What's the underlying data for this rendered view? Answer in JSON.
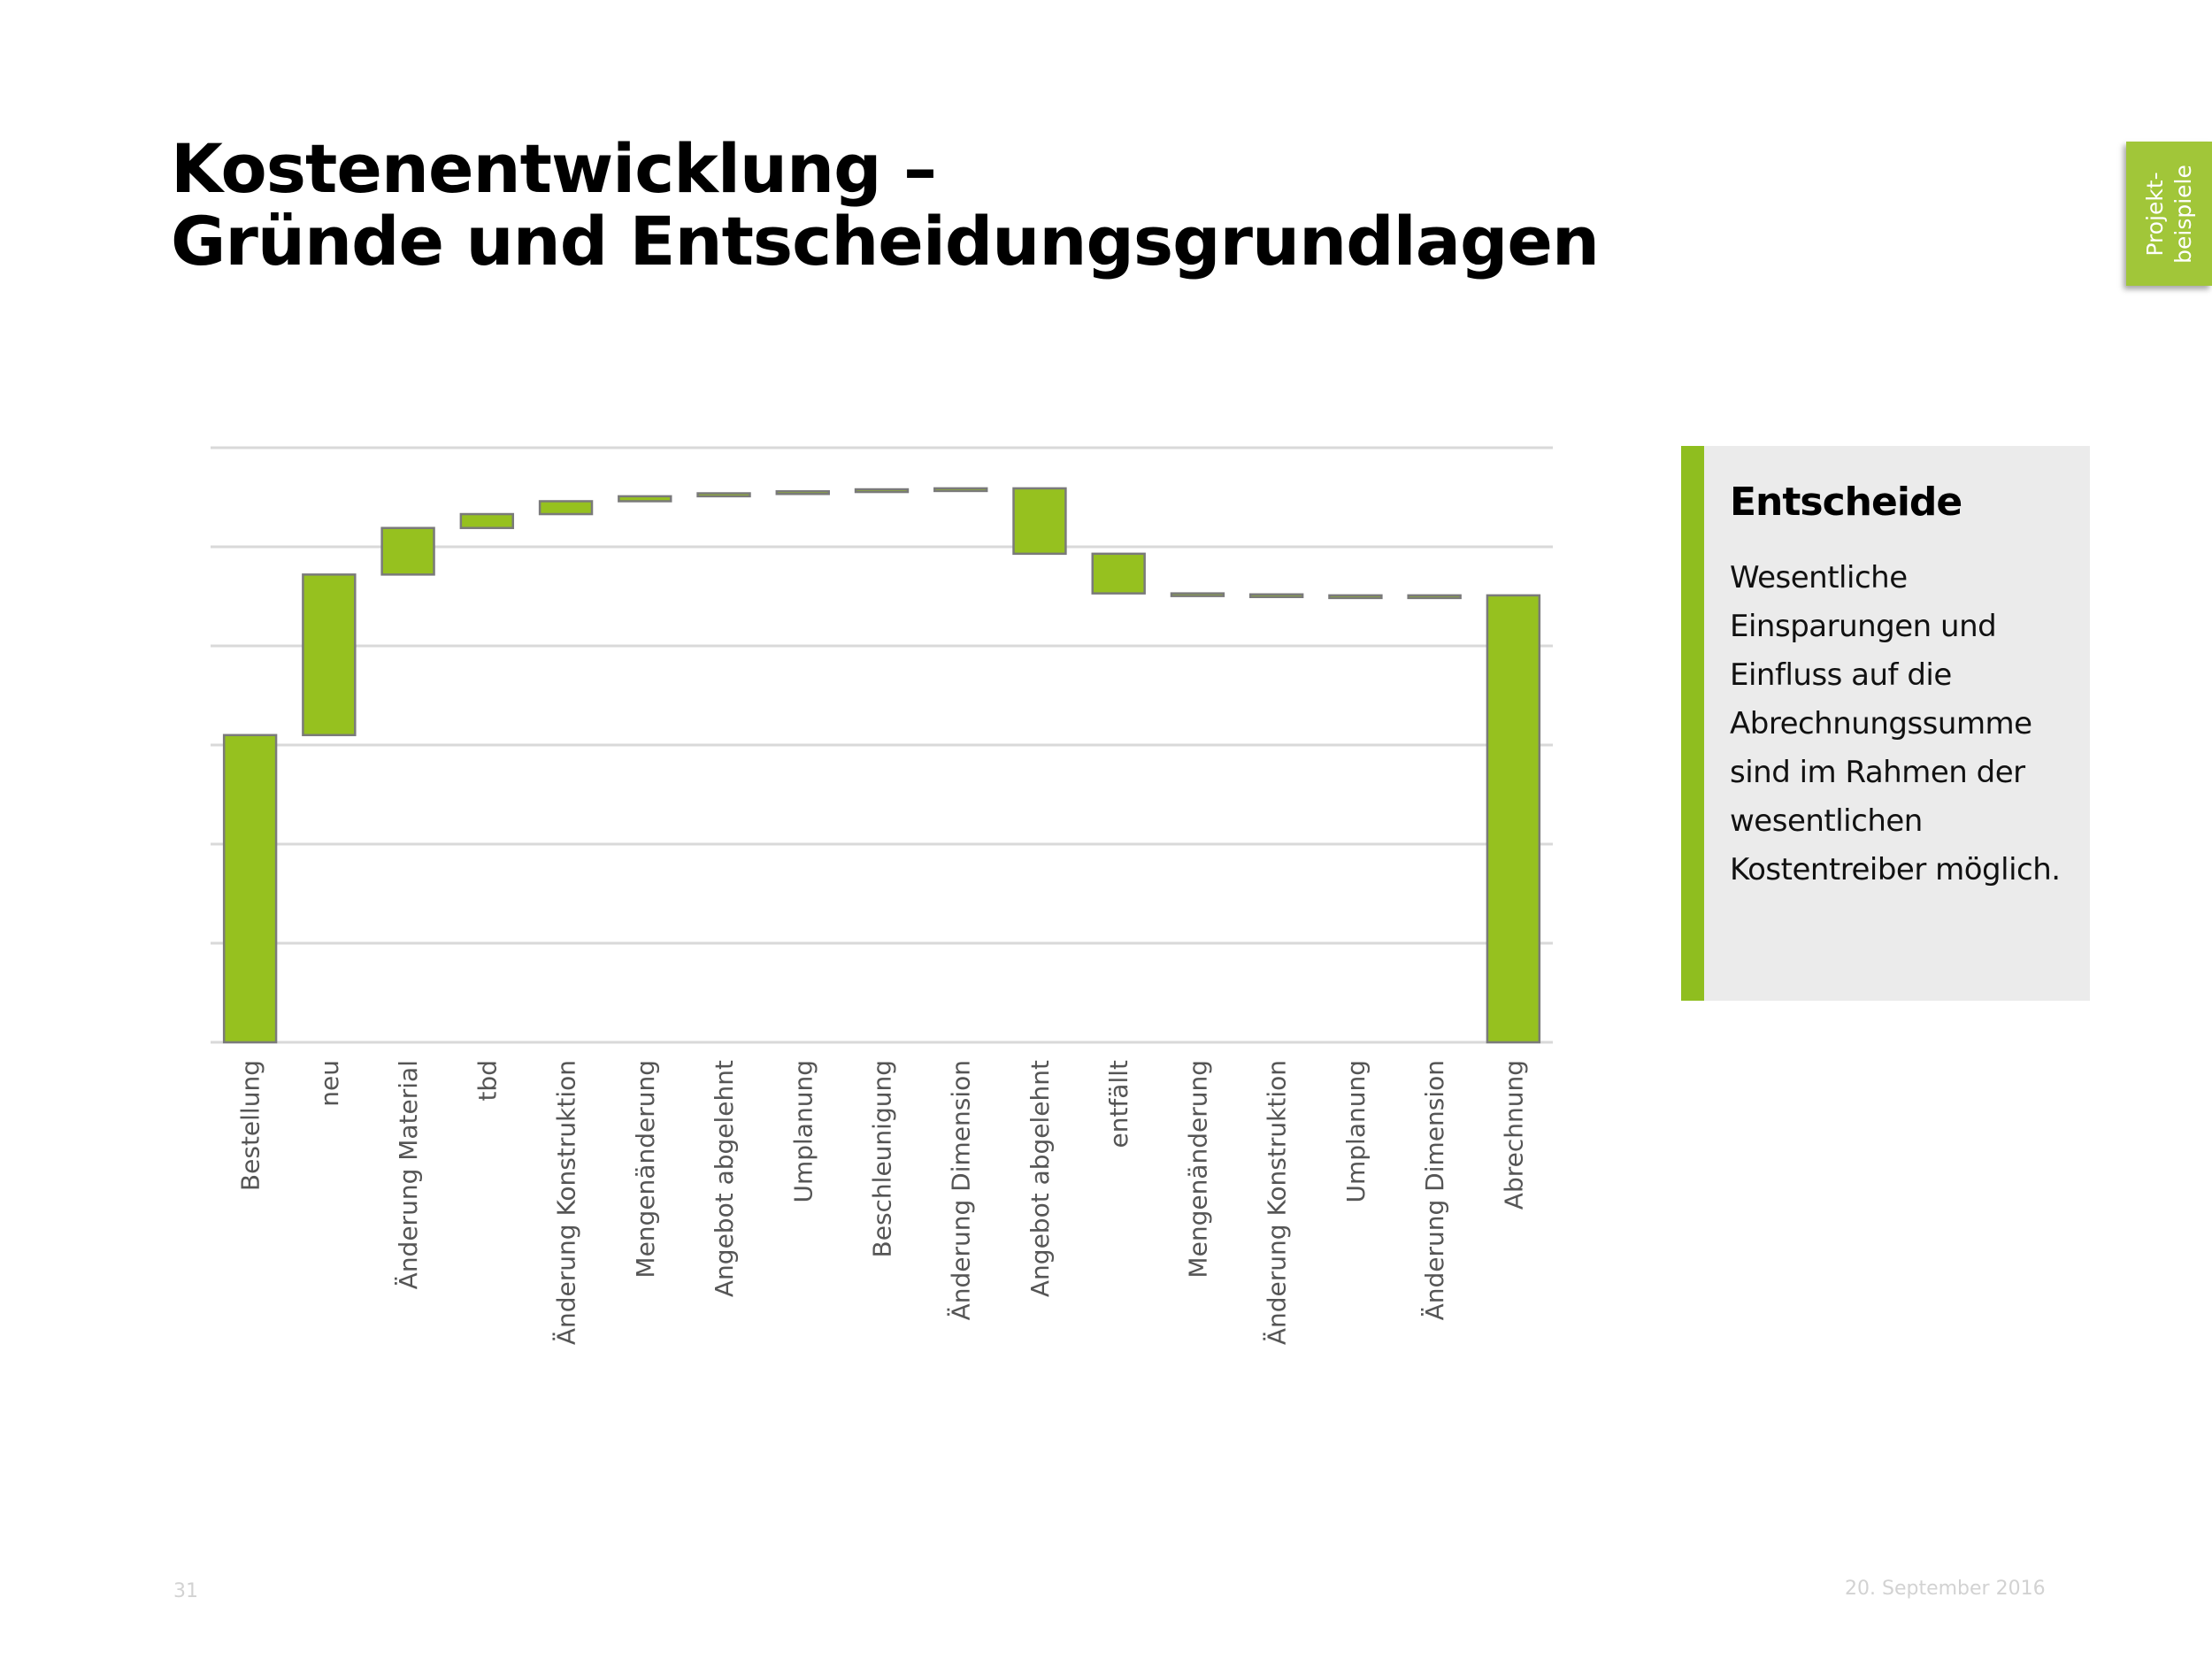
{
  "title": {
    "line1": "Kostenentwicklung –",
    "line2": "Gründe und Entscheidungsgrundlagen"
  },
  "side_tab": {
    "line1": "Projekt-",
    "line2": "beispiele",
    "color": "#a1c639"
  },
  "info_box": {
    "heading": "Entscheide",
    "lines": [
      "Wesentliche",
      "Einsparungen und",
      "Einfluss auf die",
      "Abrechnungssumme",
      "sind im Rahmen der",
      "wesentlichen",
      "Kostentreiber möglich."
    ],
    "accent_color": "#8fbe1f",
    "background_color": "#ebebeb"
  },
  "footer": {
    "page_number": "31",
    "date": "20. September 2016"
  },
  "chart_data": {
    "type": "bar",
    "subtype": "waterfall",
    "title": "",
    "xlabel": "",
    "ylabel": "",
    "ylim": [
      0,
      6
    ],
    "grid": true,
    "value_axis_labels_shown": false,
    "bar_color": "#96c11f",
    "bar_border_color": "#7a7a7a",
    "categories": [
      "Bestellung",
      "neu",
      "Änderung Material",
      "tbd",
      "Änderung Konstruktion",
      "Mengenänderung",
      "Angebot abgelehnt",
      "Umplanung",
      "Beschleunigung",
      "Änderung Dimension",
      "Angebot abgelehnt",
      "entfällt",
      "Mengenänderung",
      "Änderung Konstruktion",
      "Umplanung",
      "Änderung Dimension",
      "Abrechnung"
    ],
    "bars": [
      {
        "base": 0.0,
        "top": 3.1
      },
      {
        "base": 3.1,
        "top": 4.72
      },
      {
        "base": 4.72,
        "top": 5.19
      },
      {
        "base": 5.19,
        "top": 5.33
      },
      {
        "base": 5.33,
        "top": 5.46
      },
      {
        "base": 5.46,
        "top": 5.51
      },
      {
        "base": 5.51,
        "top": 5.54
      },
      {
        "base": 5.54,
        "top": 5.56
      },
      {
        "base": 5.56,
        "top": 5.58
      },
      {
        "base": 5.58,
        "top": 5.59
      },
      {
        "base": 5.59,
        "top": 4.93
      },
      {
        "base": 4.93,
        "top": 4.53
      },
      {
        "base": 4.53,
        "top": 4.52
      },
      {
        "base": 4.52,
        "top": 4.51
      },
      {
        "base": 4.51,
        "top": 4.51
      },
      {
        "base": 4.51,
        "top": 4.51
      },
      {
        "base": 0.0,
        "top": 4.51
      }
    ]
  }
}
